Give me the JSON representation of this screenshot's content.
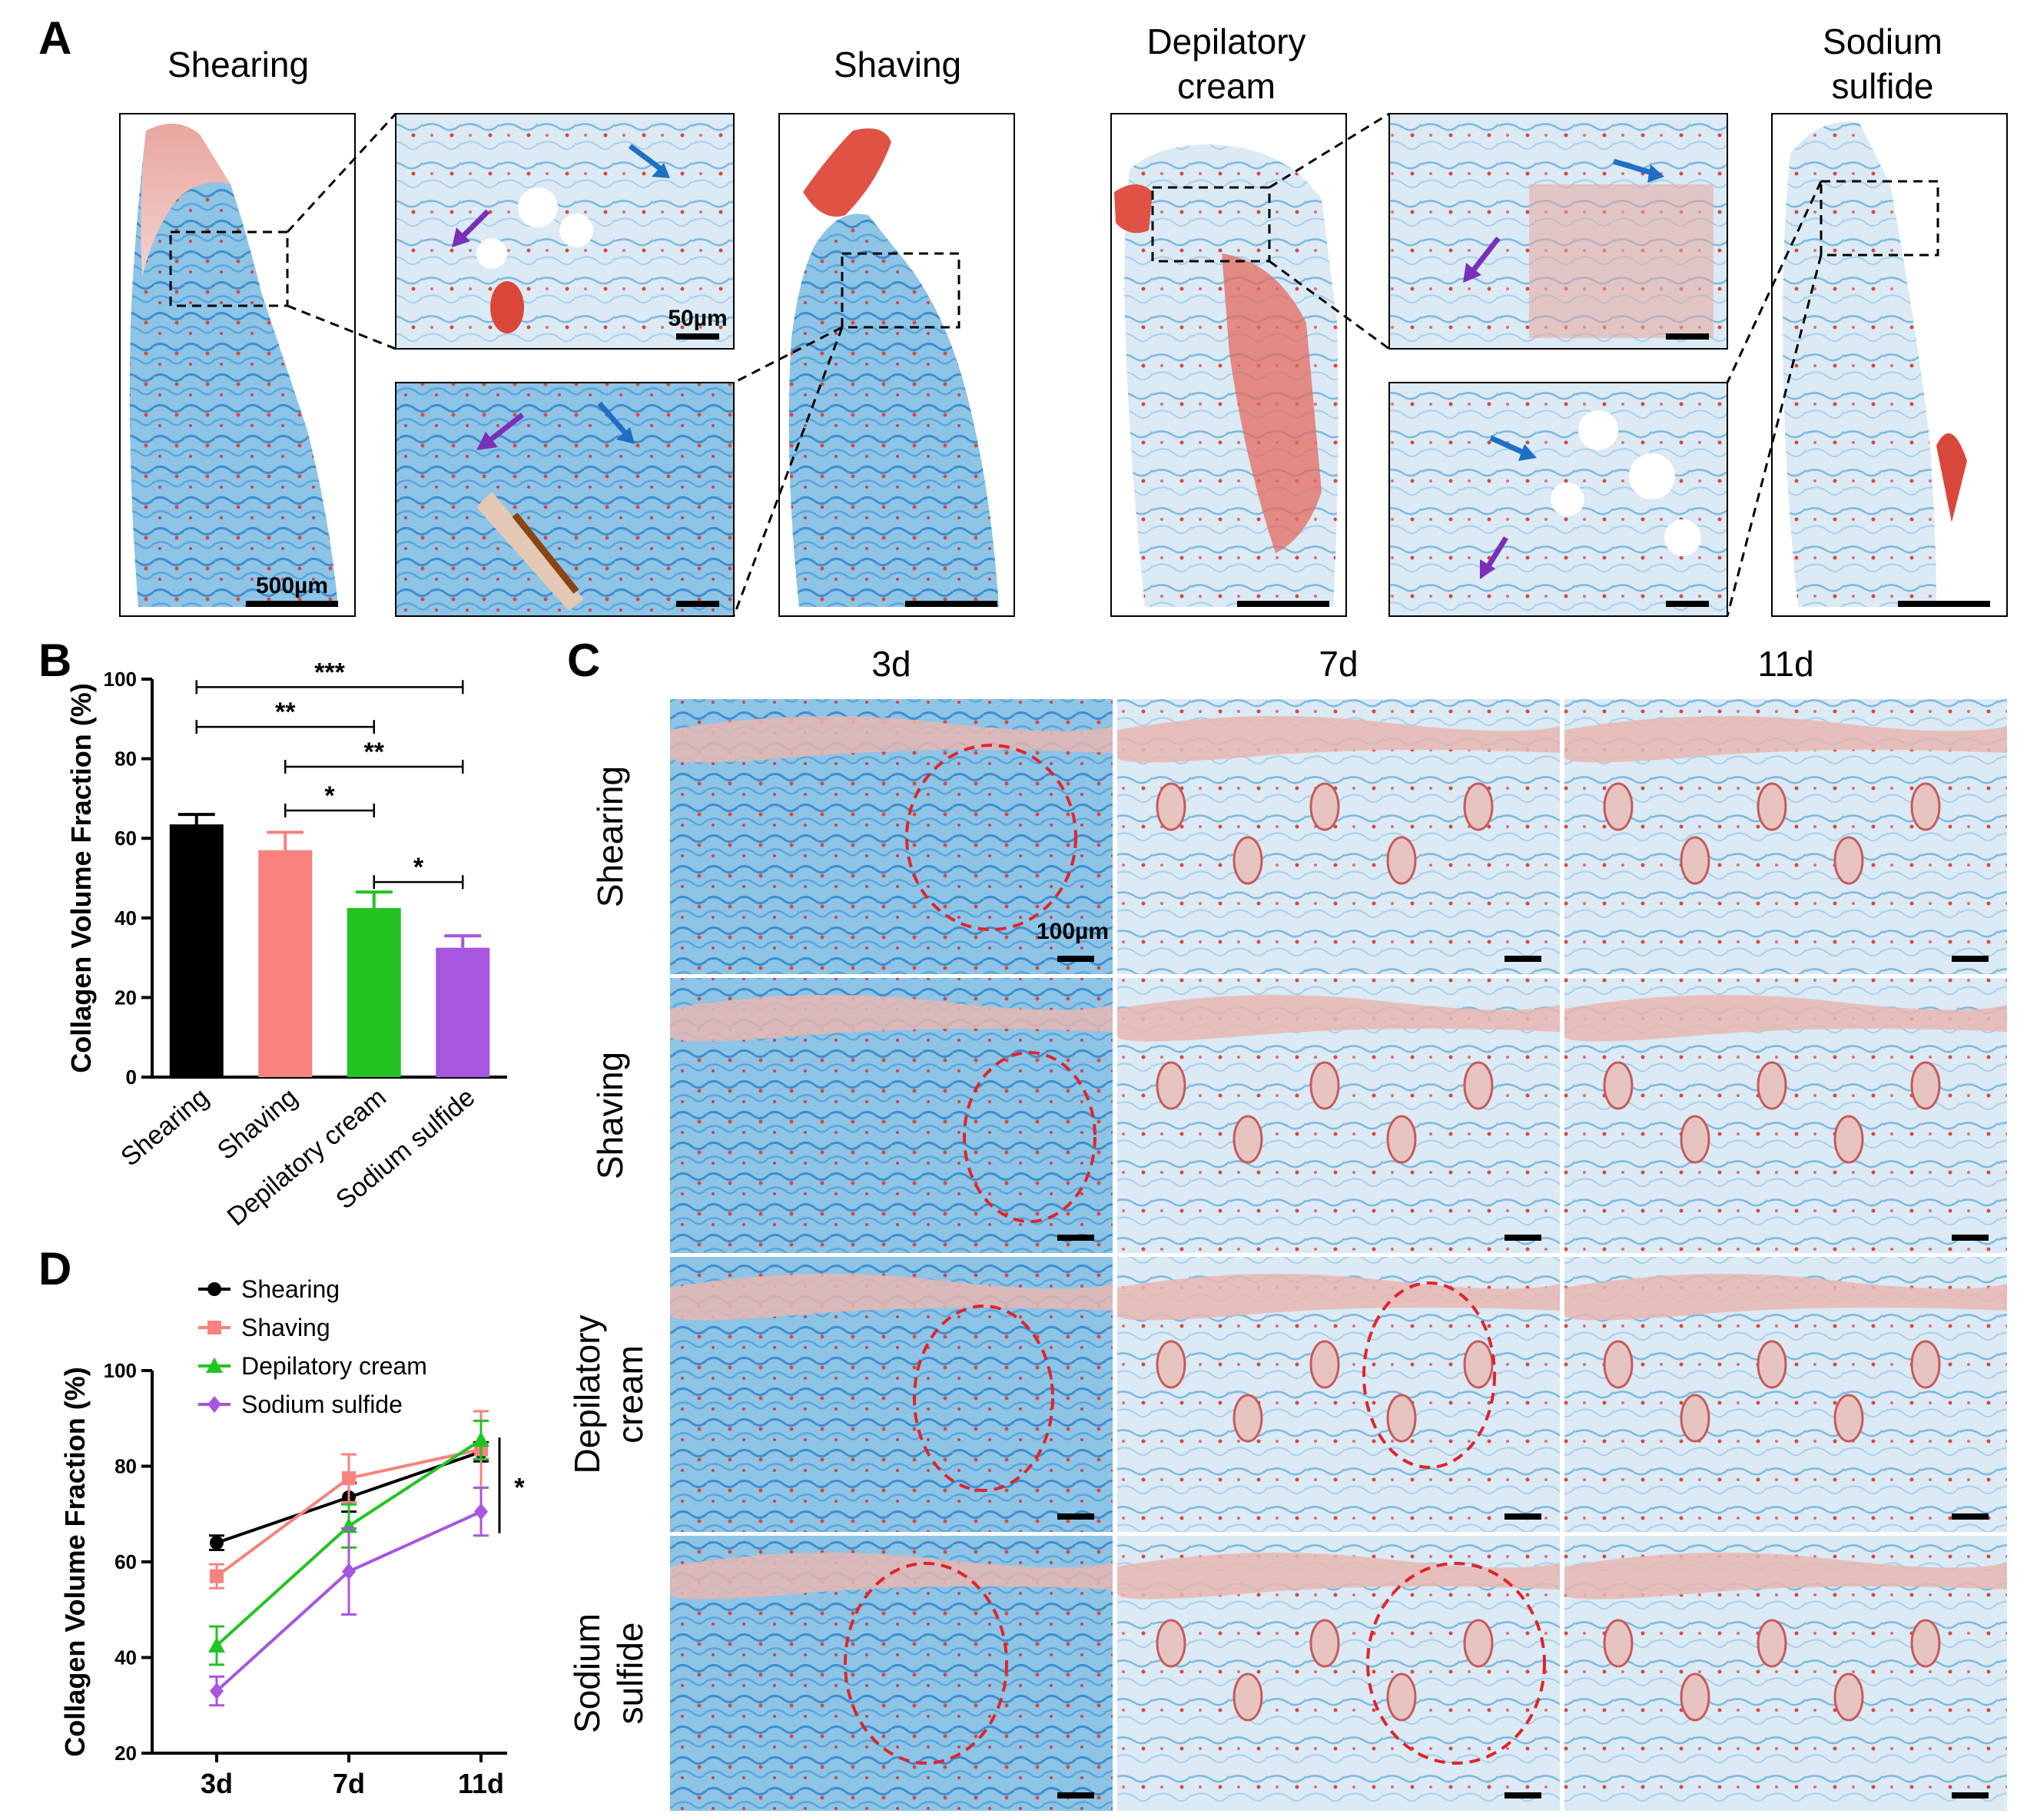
{
  "panels": {
    "A": {
      "letter": "A",
      "headers": [
        "Shearing",
        "Shaving",
        "Depilatory\ncream",
        "Sodium\nsulfide"
      ],
      "scale_bars": {
        "overview": "500µm",
        "zoom": "50µm"
      },
      "colors": {
        "collagen_blue": "#4a9fd6",
        "muscle_red": "#d9473a",
        "arrow_blue": "#1f6fc4",
        "arrow_purple": "#7a2fb8"
      }
    },
    "B": {
      "letter": "B",
      "significance": [
        "***",
        "**",
        "**",
        "*",
        "*"
      ]
    },
    "C": {
      "letter": "C",
      "col_headers": [
        "3d",
        "7d",
        "11d"
      ],
      "row_headers": [
        "Shearing",
        "Shaving",
        "Depilatory\ncream",
        "Sodium\nsulfide"
      ],
      "scale_bar": "100µm"
    },
    "D": {
      "letter": "D",
      "significance": "*"
    }
  },
  "chart_data": [
    {
      "type": "bar",
      "panel": "B",
      "categories": [
        "Shearing",
        "Shaving",
        "Depilatory cream",
        "Sodium sulfide"
      ],
      "values": [
        63.5,
        57,
        42.5,
        32.5
      ],
      "errors": [
        2.5,
        4.5,
        4,
        3
      ],
      "colors": [
        "#000000",
        "#f7827e",
        "#22c322",
        "#a855e0"
      ],
      "ylabel": "Collagen Volume Fraction (%)",
      "ylim": [
        0,
        100
      ],
      "yticks": [
        0,
        20,
        40,
        60,
        80,
        100
      ],
      "comparisons": [
        {
          "from": 0,
          "to": 3,
          "label": "***"
        },
        {
          "from": 0,
          "to": 2,
          "label": "**"
        },
        {
          "from": 1,
          "to": 3,
          "label": "**"
        },
        {
          "from": 1,
          "to": 2,
          "label": "*"
        },
        {
          "from": 2,
          "to": 3,
          "label": "*"
        }
      ]
    },
    {
      "type": "line",
      "panel": "D",
      "x": [
        "3d",
        "7d",
        "11d"
      ],
      "series": [
        {
          "name": "Shearing",
          "color": "#000000",
          "marker": "circle",
          "values": [
            64,
            73.5,
            83
          ],
          "errors": [
            1.5,
            3,
            2
          ]
        },
        {
          "name": "Shaving",
          "color": "#f7827e",
          "marker": "square",
          "values": [
            57,
            77.5,
            83.5
          ],
          "errors": [
            2.5,
            5,
            8
          ]
        },
        {
          "name": "Depilatory cream",
          "color": "#22c322",
          "marker": "triangle",
          "values": [
            42.5,
            67.5,
            85.5
          ],
          "errors": [
            4,
            4.5,
            4
          ]
        },
        {
          "name": "Sodium sulfide",
          "color": "#a855e0",
          "marker": "diamond",
          "values": [
            33,
            58,
            70.5
          ],
          "errors": [
            3,
            9,
            5
          ]
        }
      ],
      "ylabel": "Collagen Volume Fraction (%)",
      "ylim": [
        20,
        100
      ],
      "yticks": [
        20,
        40,
        60,
        80,
        100
      ],
      "legend": "top-left",
      "significance": "*"
    }
  ]
}
